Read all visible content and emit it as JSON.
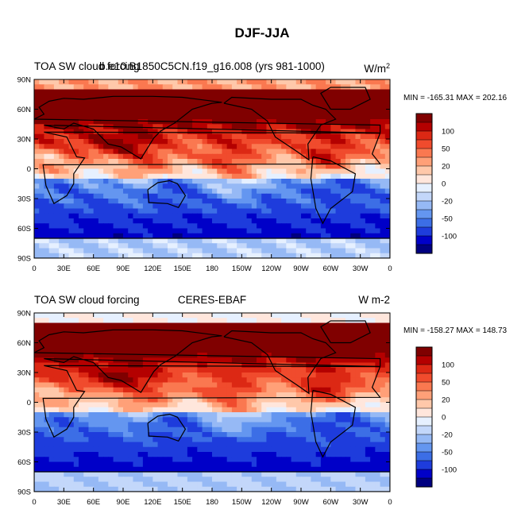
{
  "figure": {
    "main_title": "DJF-JJA"
  },
  "colors": {
    "palette": [
      "#000080",
      "#0000C8",
      "#1E3CDC",
      "#3C6EE6",
      "#6496F0",
      "#96B9F5",
      "#C3D7FA",
      "#E6F0FF",
      "#FFE6DC",
      "#FFC8AA",
      "#FFA078",
      "#FA7850",
      "#F04B2D",
      "#DC2814",
      "#B40000",
      "#800000"
    ],
    "land_outline": "#000000"
  },
  "chart_data": [
    {
      "type": "heatmap",
      "title_left": "TOA SW cloud forcing",
      "title_center": "b.e10.B1850C5CN.f19_g16.008 (yrs 981-1000)",
      "title_right": "W/m",
      "title_right_sup": "2",
      "stats": "MIN = -165.31 MAX = 202.16",
      "x_ticks": [
        "0",
        "30E",
        "60E",
        "90E",
        "120E",
        "150E",
        "180",
        "150W",
        "120W",
        "90W",
        "60W",
        "30W",
        "0"
      ],
      "y_ticks": [
        "90N",
        "60N",
        "30N",
        "0",
        "30S",
        "60S",
        "90S"
      ],
      "colorbar_levels": [
        -120,
        -100,
        -80,
        -60,
        -50,
        -40,
        -30,
        -20,
        -10,
        0,
        10,
        20,
        30,
        40,
        50,
        60,
        80,
        100,
        120
      ],
      "colorbar_labels": [
        "-100",
        "-50",
        "-20",
        "0",
        "20",
        "50",
        "100"
      ],
      "field_description": "DJF minus JJA SW cloud forcing difference"
    },
    {
      "type": "heatmap",
      "title_left": "TOA SW cloud forcing",
      "title_center": "CERES-EBAF",
      "title_right": "W m-2",
      "title_right_sup": "",
      "stats": "MIN = -158.27 MAX = 148.73",
      "x_ticks": [
        "0",
        "30E",
        "60E",
        "90E",
        "120E",
        "150E",
        "180",
        "150W",
        "120W",
        "90W",
        "60W",
        "30W",
        "0"
      ],
      "y_ticks": [
        "90N",
        "60N",
        "30N",
        "0",
        "30S",
        "60S",
        "90S"
      ],
      "colorbar_levels": [
        -120,
        -100,
        -80,
        -60,
        -50,
        -40,
        -30,
        -20,
        -10,
        0,
        10,
        20,
        30,
        40,
        50,
        60,
        80,
        100,
        120
      ],
      "colorbar_labels": [
        "-100",
        "-50",
        "-20",
        "0",
        "20",
        "50",
        "100"
      ],
      "field_description": "DJF minus JJA SW cloud forcing difference"
    }
  ]
}
